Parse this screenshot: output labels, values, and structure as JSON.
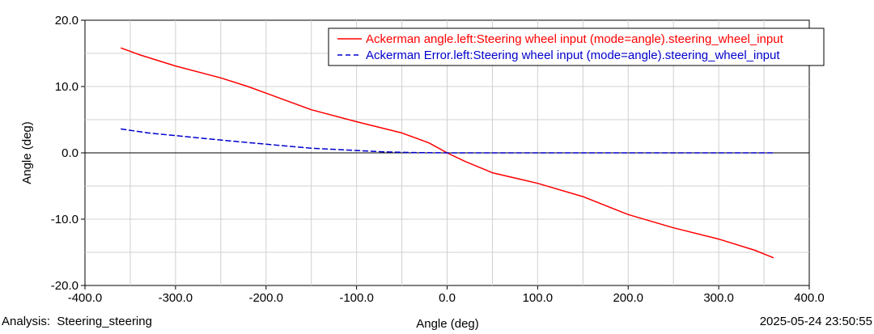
{
  "chart_data": {
    "type": "line",
    "xlabel": "Angle (deg)",
    "ylabel": "Angle (deg)",
    "xlim": [
      -400,
      400
    ],
    "ylim": [
      -20,
      20
    ],
    "grid": true,
    "legend_position": "top-right",
    "x_ticks": [
      "-400.0",
      "-300.0",
      "-200.0",
      "-100.0",
      "0.0",
      "100.0",
      "200.0",
      "300.0",
      "400.0"
    ],
    "y_ticks": [
      "20.0",
      "10.0",
      "0.0",
      "-10.0",
      "-20.0"
    ],
    "series": [
      {
        "name": "Ackerman angle.left:Steering wheel input (mode=angle).steering_wheel_input",
        "color": "#ff0000",
        "style": "solid",
        "points": [
          [
            -360,
            15.8
          ],
          [
            -340,
            14.8
          ],
          [
            -300,
            13.1
          ],
          [
            -250,
            11.3
          ],
          [
            -220,
            10.0
          ],
          [
            -200,
            9.0
          ],
          [
            -150,
            6.5
          ],
          [
            -100,
            4.7
          ],
          [
            -50,
            3.0
          ],
          [
            -20,
            1.5
          ],
          [
            0,
            0.0
          ],
          [
            20,
            -1.3
          ],
          [
            50,
            -3.0
          ],
          [
            100,
            -4.6
          ],
          [
            150,
            -6.6
          ],
          [
            200,
            -9.3
          ],
          [
            250,
            -11.3
          ],
          [
            300,
            -13.0
          ],
          [
            340,
            -14.7
          ],
          [
            360,
            -15.8
          ]
        ]
      },
      {
        "name": "Ackerman Error.left:Steering wheel input (mode=angle).steering_wheel_input",
        "color": "#0000cc",
        "style": "dashed",
        "points": [
          [
            -360,
            3.6
          ],
          [
            -330,
            3.0
          ],
          [
            -300,
            2.6
          ],
          [
            -270,
            2.2
          ],
          [
            -240,
            1.8
          ],
          [
            -200,
            1.3
          ],
          [
            -150,
            0.7
          ],
          [
            -100,
            0.35
          ],
          [
            -70,
            0.15
          ],
          [
            -40,
            0.05
          ],
          [
            0,
            0.0
          ],
          [
            100,
            0.0
          ],
          [
            200,
            0.0
          ],
          [
            300,
            0.0
          ],
          [
            360,
            0.0
          ]
        ]
      }
    ]
  },
  "footer": {
    "analysis_label": "Analysis:",
    "analysis_value": "Steering_steering",
    "timestamp": "2025-05-24 23:50:55"
  }
}
